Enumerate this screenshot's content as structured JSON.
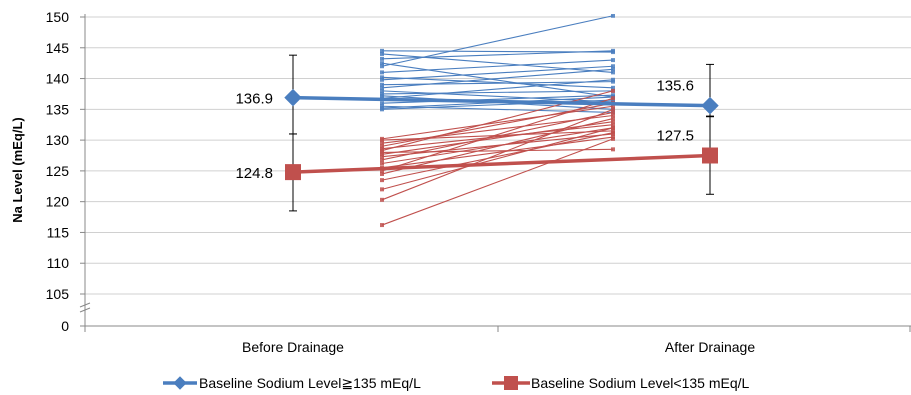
{
  "chart_data": {
    "type": "line",
    "ylabel": "Na Level (mEq/L)",
    "categories": [
      "Before Drainage",
      "After Drainage"
    ],
    "y_ticks": [
      "0",
      "105",
      "110",
      "115",
      "120",
      "125",
      "130",
      "135",
      "140",
      "145",
      "150"
    ],
    "ylim": [
      105,
      150
    ],
    "y_axis_break": true,
    "grid": true,
    "legend_position": "bottom",
    "series": [
      {
        "name": "Baseline Sodium Level≧135 mEq/L",
        "color": "#4a7ebf",
        "marker": "diamond",
        "means": [
          136.9,
          135.6
        ],
        "mean_labels": [
          "136.9",
          "135.6"
        ],
        "error_bars": [
          [
            131.0,
            143.8
          ],
          [
            133.9,
            142.3
          ]
        ],
        "individual_pairs": [
          [
            142.0,
            150.2
          ],
          [
            144.5,
            144.3
          ],
          [
            144.0,
            141.0
          ],
          [
            143.2,
            144.5
          ],
          [
            142.5,
            137.0
          ],
          [
            141.0,
            143.0
          ],
          [
            140.2,
            138.5
          ],
          [
            139.8,
            142.0
          ],
          [
            139.0,
            139.5
          ],
          [
            138.5,
            141.5
          ],
          [
            138.0,
            136.2
          ],
          [
            137.5,
            138.0
          ],
          [
            137.2,
            135.0
          ],
          [
            136.8,
            139.8
          ],
          [
            136.0,
            137.3
          ],
          [
            135.5,
            134.5
          ],
          [
            135.2,
            137.0
          ],
          [
            135.0,
            136.5
          ]
        ]
      },
      {
        "name": "Baseline Sodium Level<135 mEq/L",
        "color": "#c0504d",
        "marker": "square",
        "means": [
          124.8,
          127.5
        ],
        "mean_labels": [
          "124.8",
          "127.5"
        ],
        "error_bars": [
          [
            118.5,
            131.0
          ],
          [
            121.2,
            133.8
          ]
        ],
        "individual_pairs": [
          [
            130.2,
            135.5
          ],
          [
            130.0,
            131.5
          ],
          [
            129.5,
            134.0
          ],
          [
            129.0,
            136.0
          ],
          [
            128.6,
            132.5
          ],
          [
            128.3,
            138.0
          ],
          [
            128.0,
            128.5
          ],
          [
            127.7,
            133.0
          ],
          [
            127.3,
            131.0
          ],
          [
            126.8,
            134.5
          ],
          [
            126.2,
            132.0
          ],
          [
            125.5,
            130.5
          ],
          [
            125.0,
            136.8
          ],
          [
            124.5,
            133.5
          ],
          [
            123.5,
            131.2
          ],
          [
            122.0,
            132.0
          ],
          [
            120.3,
            135.0
          ],
          [
            116.2,
            130.2
          ]
        ]
      }
    ]
  }
}
